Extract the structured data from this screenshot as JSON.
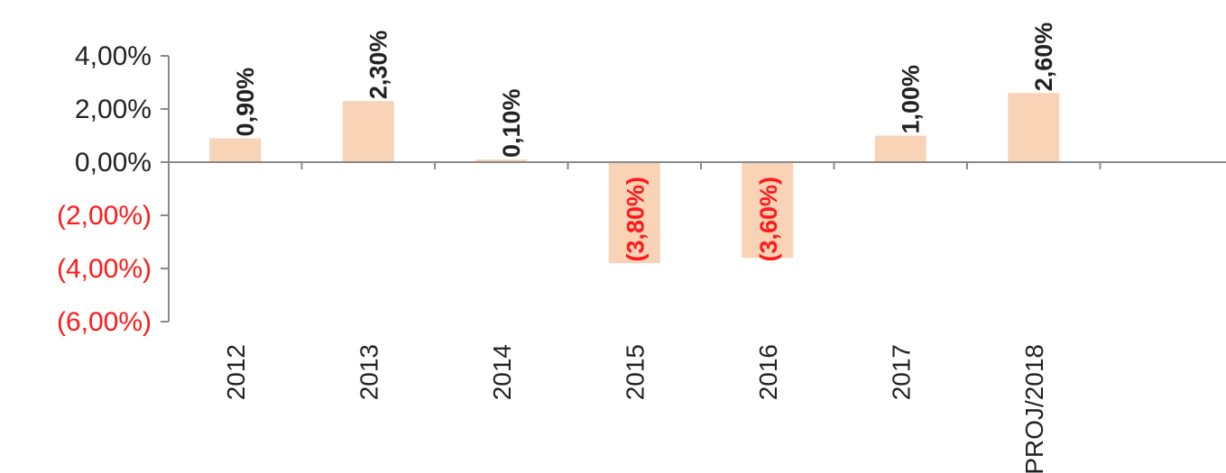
{
  "chart_data": {
    "type": "bar",
    "title": "",
    "xlabel": "",
    "ylabel": "",
    "categories": [
      "2012",
      "2013",
      "2014",
      "2015",
      "2016",
      "2017",
      "PROJ/2018"
    ],
    "values": [
      0.9,
      2.3,
      0.1,
      -3.8,
      -3.6,
      1.0,
      2.6
    ],
    "data_labels": [
      "0,90%",
      "2,30%",
      "0,10%",
      "(3,80%)",
      "(3,60%)",
      "1,00%",
      "2,60%"
    ],
    "ylim": [
      -6,
      4
    ],
    "y_ticks": [
      4,
      2,
      0,
      -2,
      -4,
      -6
    ],
    "y_tick_labels": [
      "4,00%",
      "2,00%",
      "0,00%",
      "(2,00%)",
      "(4,00%)",
      "(6,00%)"
    ],
    "grid": false,
    "legend": "none"
  },
  "colors": {
    "bar": "#f9d3b6",
    "positive_text": "#222222",
    "negative_text": "#ff1a1a",
    "axis": "#8a8a8a"
  }
}
